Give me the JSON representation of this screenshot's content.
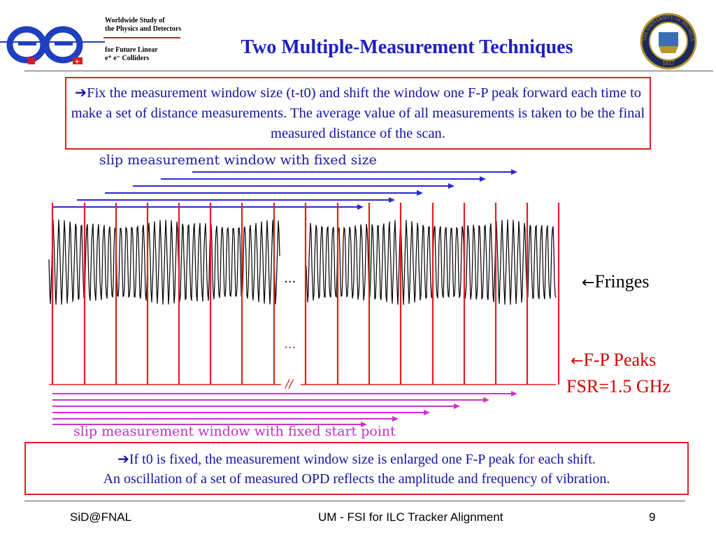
{
  "header": {
    "logo_lines": [
      "Worldwide Study of",
      "the Physics and Detectors",
      "for Future Linear",
      "e⁺ e⁻ Colliders"
    ],
    "title": "Two Multiple-Measurement Techniques",
    "seal_year": "1817",
    "seal_text": "THE UNIVERSITY OF MICHIGAN"
  },
  "top_box": {
    "arrow": "➔",
    "text": "Fix the measurement window size (t-t0) and shift the window one F-P peak forward each time to make a set of distance measurements. The average value of all measurements is taken to be the final measured distance of the scan."
  },
  "figure": {
    "top_label": "slip measurement window with fixed size",
    "bottom_label": "slip measurement window with fixed start point",
    "ellipsis1": "...",
    "ellipsis2": "...",
    "break_mark": "//",
    "fringes_label": "Fringes",
    "peaks_label": "F-P Peaks",
    "fsr_label": "FSR=1.5 GHz",
    "left_arrow": "🡸"
  },
  "bottom_box": {
    "arrow": "➔",
    "line1": "If t0 is fixed, the measurement window size is enlarged one F-P peak for each shift.",
    "line2": "An oscillation of a set of measured OPD reflects the amplitude and frequency of vibration."
  },
  "footer": {
    "left": "SiD@FNAL",
    "center": "UM - FSI for ILC Tracker Alignment",
    "page": "9"
  },
  "colors": {
    "title": "#1f1fbf",
    "text_blue": "#1414a0",
    "box_red": "#e02020",
    "blue_arrows": "#2a2acc",
    "magenta_arrows": "#cc33cc",
    "fringe": "#000000",
    "peak": "#e02020"
  }
}
